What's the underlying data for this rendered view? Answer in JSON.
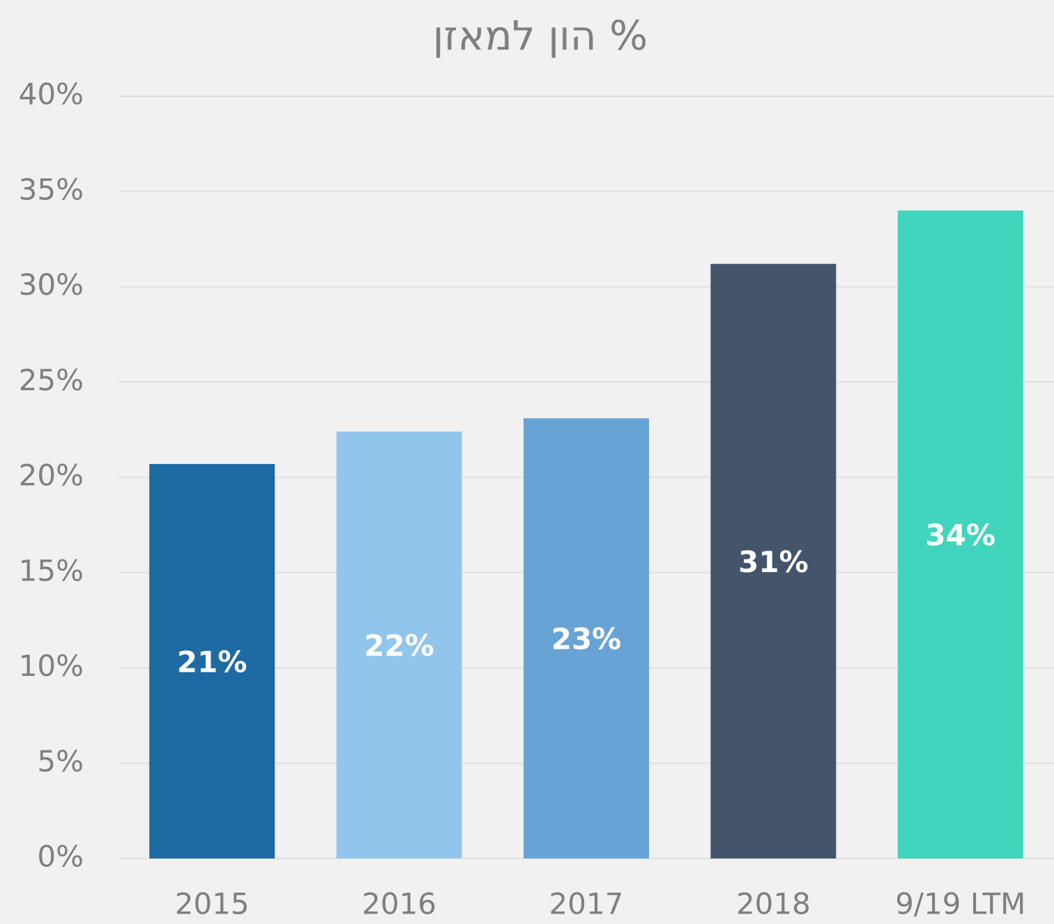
{
  "chart_data": {
    "type": "bar",
    "title": "% הון למאזן",
    "categories": [
      "2015",
      "2016",
      "2017",
      "2018",
      "9/19 LTM"
    ],
    "values": [
      20.7,
      22.4,
      23.1,
      31.2,
      34.0
    ],
    "value_labels": [
      "21%",
      "22%",
      "23%",
      "31%",
      "34%"
    ],
    "colors": [
      "#1e6aa3",
      "#92c5ec",
      "#68a3d6",
      "#43546b",
      "#40d5bc"
    ],
    "ylim": [
      0,
      40
    ],
    "yticks": [
      {
        "value": 0,
        "label": "0%"
      },
      {
        "value": 5,
        "label": "5%"
      },
      {
        "value": 10,
        "label": "10%"
      },
      {
        "value": 15,
        "label": "15%"
      },
      {
        "value": 20,
        "label": "20%"
      },
      {
        "value": 25,
        "label": "25%"
      },
      {
        "value": 30,
        "label": "30%"
      },
      {
        "value": 35,
        "label": "35%"
      },
      {
        "value": 40,
        "label": "40%"
      }
    ],
    "grid": true
  }
}
